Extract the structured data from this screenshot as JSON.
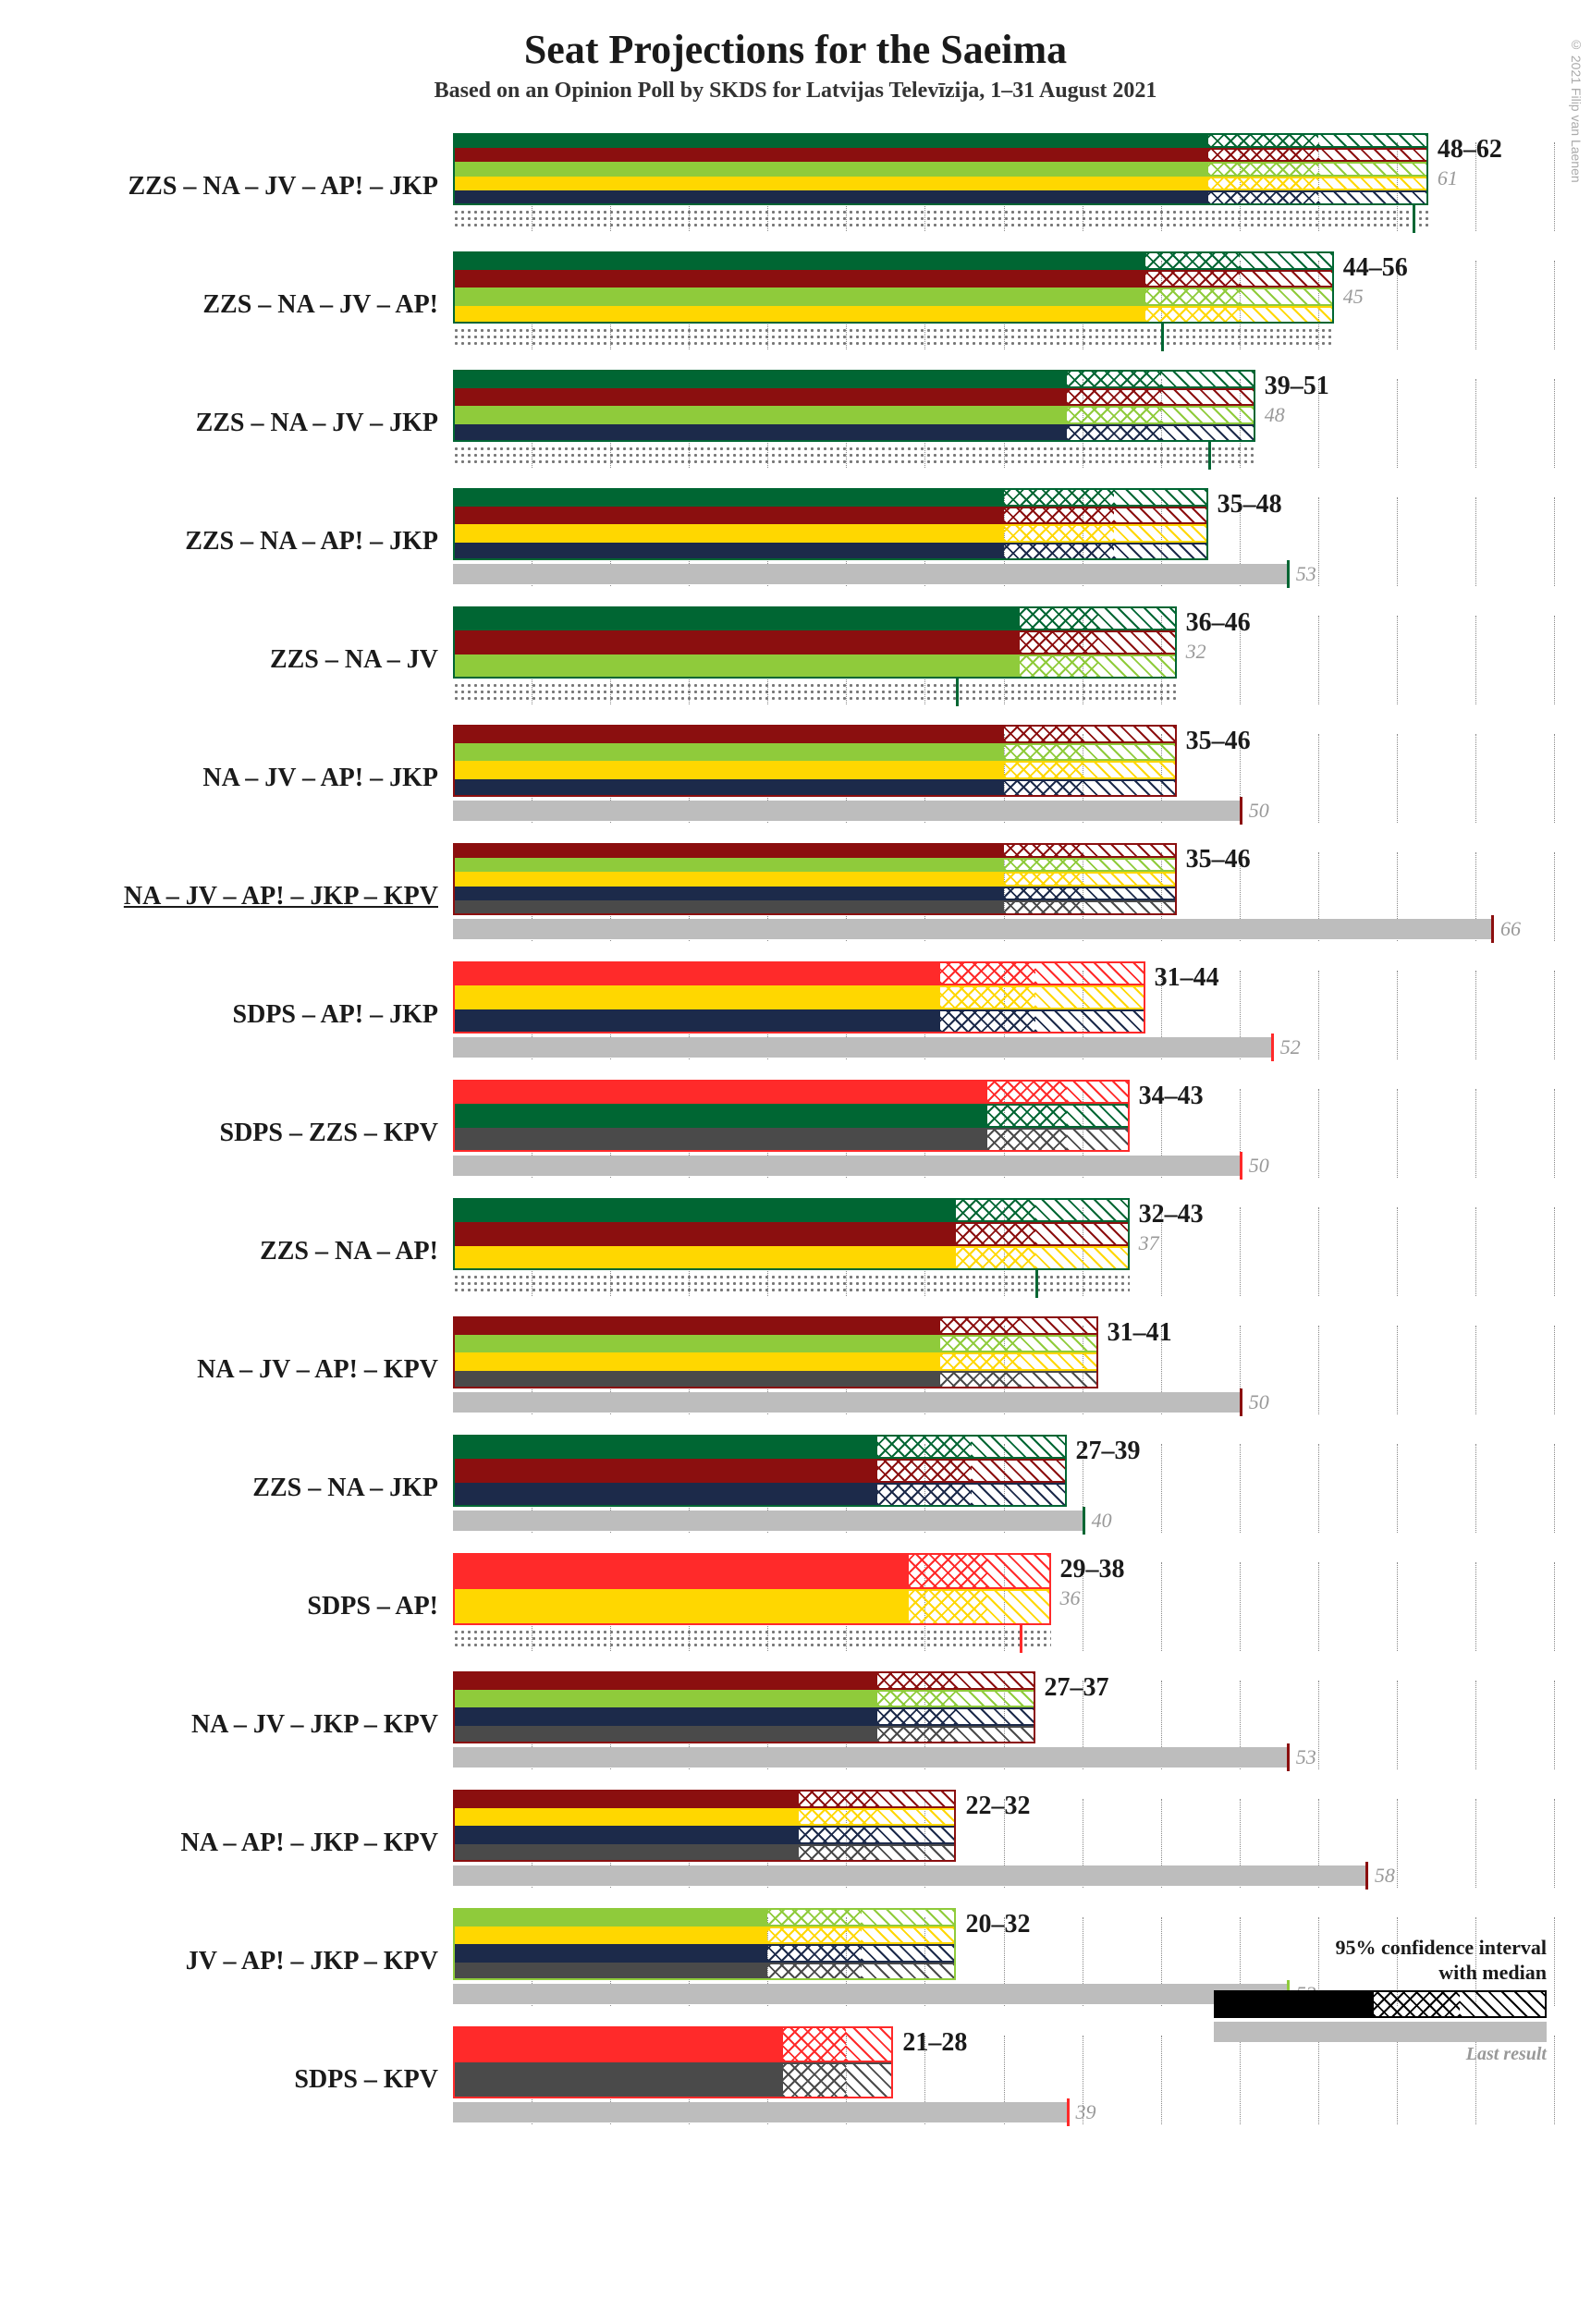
{
  "credit": "© 2021 Filip van Laenen",
  "title": "Seat Projections for the Saeima",
  "subtitle": "Based on an Opinion Poll by SKDS for Latvijas Televīzija, 1–31 August 2021",
  "chart": {
    "xmax": 70,
    "tick_count": 14,
    "majority_line": 51,
    "party_colors": {
      "ZZS": "#006633",
      "NA": "#8b0f0f",
      "JV": "#8fcb3b",
      "AP": "#ffd700",
      "JKP": "#1c2a4a",
      "KPV": "#4a4a4a",
      "SDPS": "#ff2a2a"
    },
    "last_bar_color": "#bdbdbd",
    "dot_color": "#888888",
    "grid_color": "#888888",
    "title_fontsize": 44,
    "subtitle_fontsize": 24,
    "label_fontsize": 28,
    "range_fontsize": 28,
    "last_fontsize": 22
  },
  "coalitions": [
    {
      "label": "ZZS – NA – JV – AP! – JKP",
      "parties": [
        "ZZS",
        "NA",
        "JV",
        "AP",
        "JKP"
      ],
      "low": 48,
      "median": 55,
      "high": 62,
      "last": 61
    },
    {
      "label": "ZZS – NA – JV – AP!",
      "parties": [
        "ZZS",
        "NA",
        "JV",
        "AP"
      ],
      "low": 44,
      "median": 50,
      "high": 56,
      "last": 45
    },
    {
      "label": "ZZS – NA – JV – JKP",
      "parties": [
        "ZZS",
        "NA",
        "JV",
        "JKP"
      ],
      "low": 39,
      "median": 45,
      "high": 51,
      "last": 48
    },
    {
      "label": "ZZS – NA – AP! – JKP",
      "parties": [
        "ZZS",
        "NA",
        "AP",
        "JKP"
      ],
      "low": 35,
      "median": 42,
      "high": 48,
      "last": 53
    },
    {
      "label": "ZZS – NA – JV",
      "parties": [
        "ZZS",
        "NA",
        "JV"
      ],
      "low": 36,
      "median": 41,
      "high": 46,
      "last": 32
    },
    {
      "label": "NA – JV – AP! – JKP",
      "parties": [
        "NA",
        "JV",
        "AP",
        "JKP"
      ],
      "low": 35,
      "median": 40,
      "high": 46,
      "last": 50
    },
    {
      "label": "NA – JV – AP! – JKP – KPV",
      "parties": [
        "NA",
        "JV",
        "AP",
        "JKP",
        "KPV"
      ],
      "low": 35,
      "median": 40,
      "high": 46,
      "last": 66,
      "underline": true
    },
    {
      "label": "SDPS – AP! – JKP",
      "parties": [
        "SDPS",
        "AP",
        "JKP"
      ],
      "low": 31,
      "median": 37,
      "high": 44,
      "last": 52
    },
    {
      "label": "SDPS – ZZS – KPV",
      "parties": [
        "SDPS",
        "ZZS",
        "KPV"
      ],
      "low": 34,
      "median": 39,
      "high": 43,
      "last": 50
    },
    {
      "label": "ZZS – NA – AP!",
      "parties": [
        "ZZS",
        "NA",
        "AP"
      ],
      "low": 32,
      "median": 37,
      "high": 43,
      "last": 37
    },
    {
      "label": "NA – JV – AP! – KPV",
      "parties": [
        "NA",
        "JV",
        "AP",
        "KPV"
      ],
      "low": 31,
      "median": 36,
      "high": 41,
      "last": 50
    },
    {
      "label": "ZZS – NA – JKP",
      "parties": [
        "ZZS",
        "NA",
        "JKP"
      ],
      "low": 27,
      "median": 33,
      "high": 39,
      "last": 40
    },
    {
      "label": "SDPS – AP!",
      "parties": [
        "SDPS",
        "AP"
      ],
      "low": 29,
      "median": 34,
      "high": 38,
      "last": 36
    },
    {
      "label": "NA – JV – JKP – KPV",
      "parties": [
        "NA",
        "JV",
        "JKP",
        "KPV"
      ],
      "low": 27,
      "median": 32,
      "high": 37,
      "last": 53
    },
    {
      "label": "NA – AP! – JKP – KPV",
      "parties": [
        "NA",
        "AP",
        "JKP",
        "KPV"
      ],
      "low": 22,
      "median": 27,
      "high": 32,
      "last": 58
    },
    {
      "label": "JV – AP! – JKP – KPV",
      "parties": [
        "JV",
        "AP",
        "JKP",
        "KPV"
      ],
      "low": 20,
      "median": 26,
      "high": 32,
      "last": 53
    },
    {
      "label": "SDPS – KPV",
      "parties": [
        "SDPS",
        "KPV"
      ],
      "low": 21,
      "median": 25,
      "high": 28,
      "last": 39
    }
  ],
  "legend": {
    "ci_label": "95% confidence interval\nwith median",
    "last_label": "Last result"
  }
}
